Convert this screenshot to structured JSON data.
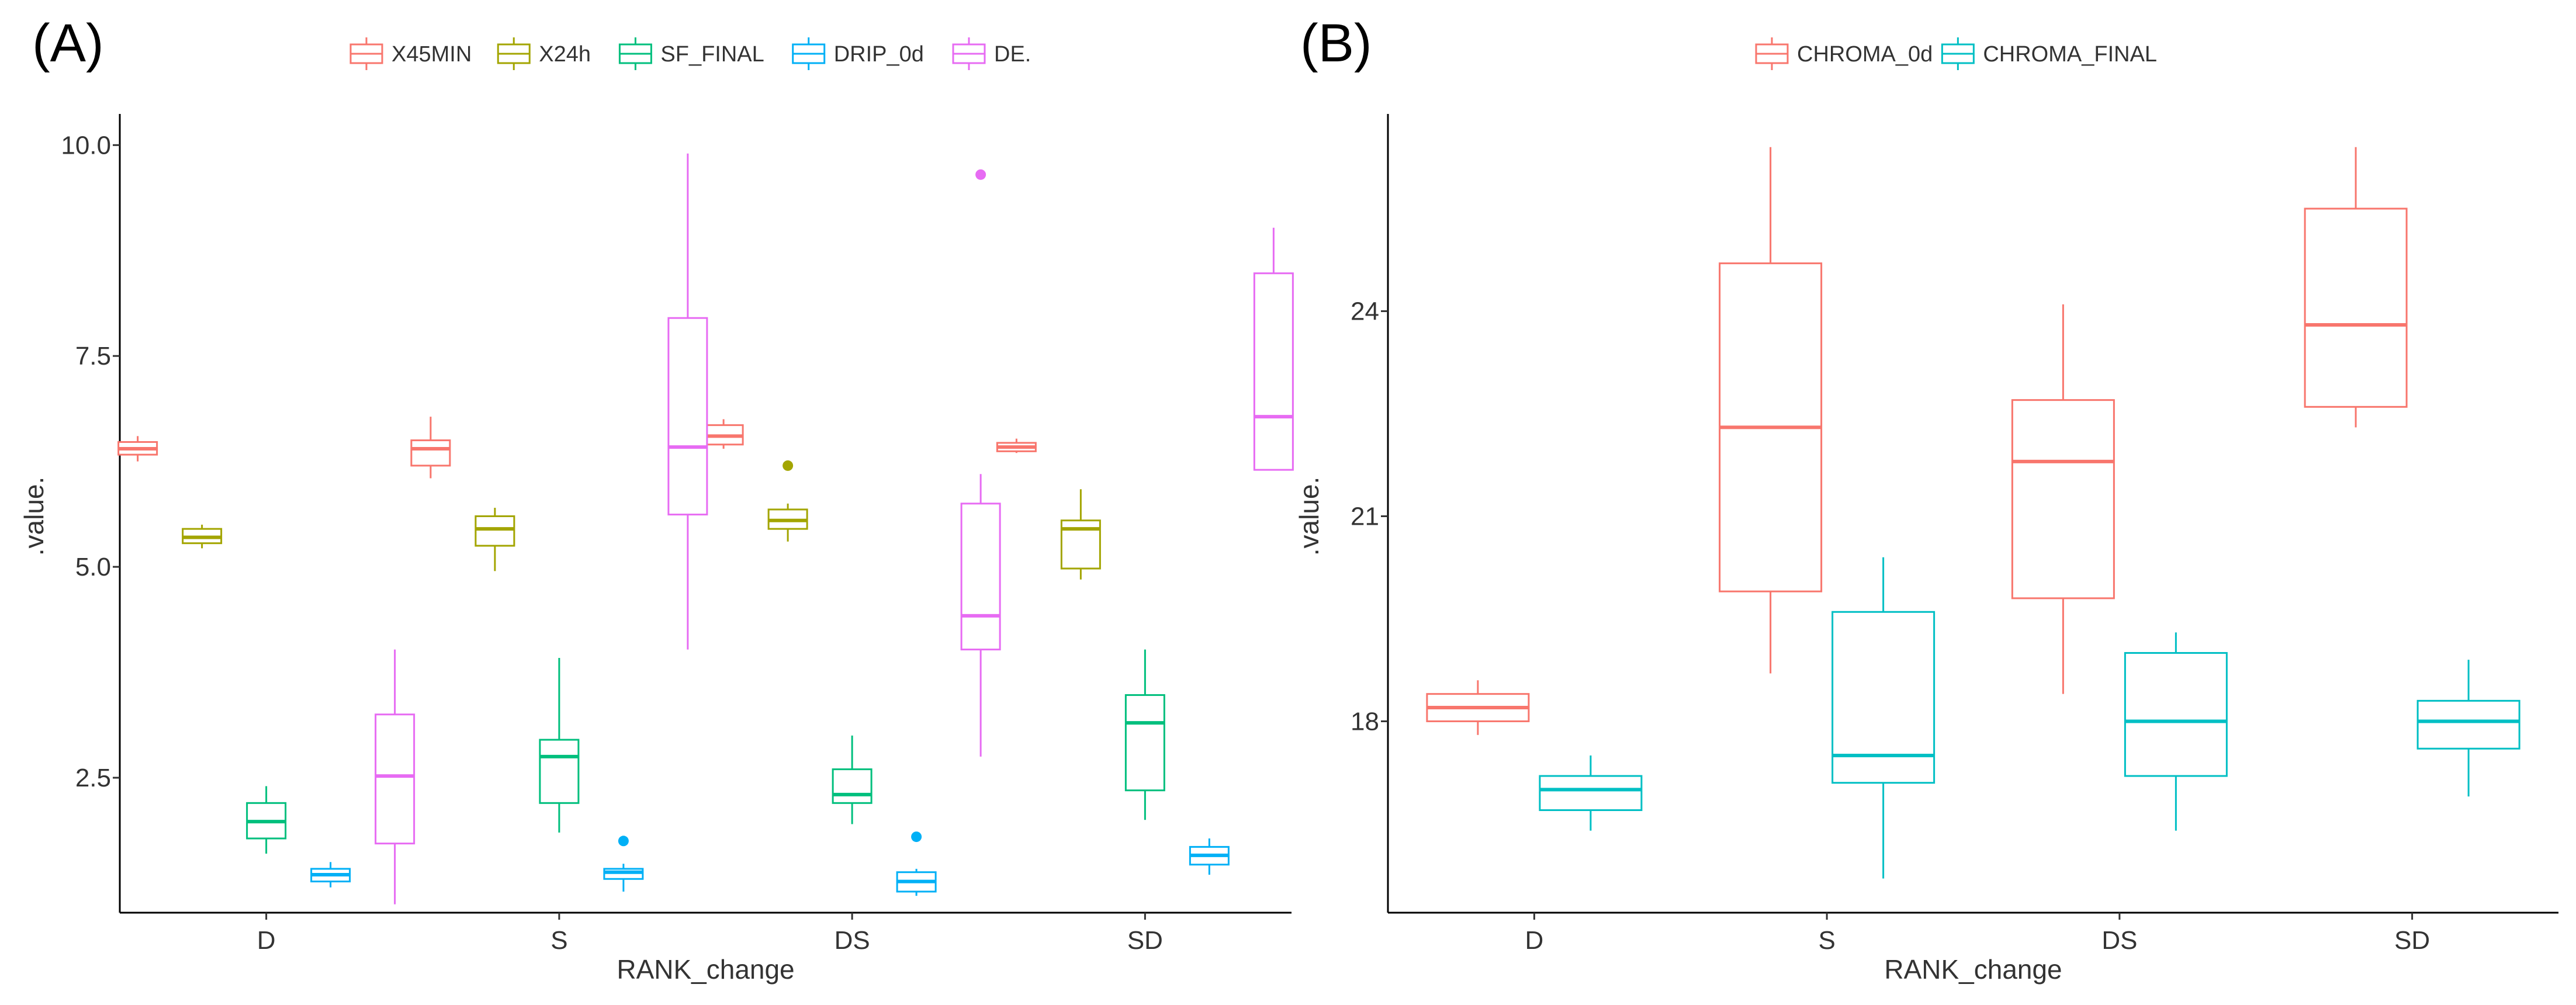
{
  "chart_data": [
    {
      "type": "boxplot",
      "panel_label": "(A)",
      "xlabel": "RANK_change",
      "ylabel": ".value.",
      "categories": [
        "D",
        "S",
        "DS",
        "SD"
      ],
      "ylim": [
        0.9,
        10.3
      ],
      "yticks": [
        2.5,
        5.0,
        7.5,
        10.0
      ],
      "ytick_labels": [
        "2.5",
        "5.0",
        "7.5",
        "10.0"
      ],
      "legend_position": "top",
      "series": [
        {
          "name": "X45MIN",
          "color": "#F8766D",
          "boxes": [
            {
              "category": "D",
              "low": 6.25,
              "q1": 6.33,
              "median": 6.4,
              "q3": 6.48,
              "high": 6.55,
              "outliers": []
            },
            {
              "category": "S",
              "low": 6.05,
              "q1": 6.2,
              "median": 6.4,
              "q3": 6.5,
              "high": 6.78,
              "outliers": []
            },
            {
              "category": "DS",
              "low": 6.4,
              "q1": 6.45,
              "median": 6.55,
              "q3": 6.68,
              "high": 6.75,
              "outliers": []
            },
            {
              "category": "SD",
              "low": 6.35,
              "q1": 6.37,
              "median": 6.42,
              "q3": 6.47,
              "high": 6.52,
              "outliers": []
            }
          ]
        },
        {
          "name": "X24h",
          "color": "#A3A500",
          "boxes": [
            {
              "category": "D",
              "low": 5.22,
              "q1": 5.28,
              "median": 5.35,
              "q3": 5.45,
              "high": 5.5,
              "outliers": []
            },
            {
              "category": "S",
              "low": 4.95,
              "q1": 5.25,
              "median": 5.45,
              "q3": 5.6,
              "high": 5.7,
              "outliers": []
            },
            {
              "category": "DS",
              "low": 5.3,
              "q1": 5.45,
              "median": 5.55,
              "q3": 5.68,
              "high": 5.75,
              "outliers": [
                6.2
              ]
            },
            {
              "category": "SD",
              "low": 4.85,
              "q1": 4.98,
              "median": 5.45,
              "q3": 5.55,
              "high": 5.92,
              "outliers": []
            }
          ]
        },
        {
          "name": "SF_FINAL",
          "color": "#00BF7D",
          "boxes": [
            {
              "category": "D",
              "low": 1.6,
              "q1": 1.78,
              "median": 1.98,
              "q3": 2.2,
              "high": 2.4,
              "outliers": []
            },
            {
              "category": "S",
              "low": 1.85,
              "q1": 2.2,
              "median": 2.75,
              "q3": 2.95,
              "high": 3.92,
              "outliers": []
            },
            {
              "category": "DS",
              "low": 1.95,
              "q1": 2.2,
              "median": 2.3,
              "q3": 2.6,
              "high": 3.0,
              "outliers": []
            },
            {
              "category": "SD",
              "low": 2.0,
              "q1": 2.35,
              "median": 3.15,
              "q3": 3.48,
              "high": 4.02,
              "outliers": []
            }
          ]
        },
        {
          "name": "DRIP_0d",
          "color": "#00B0F6",
          "boxes": [
            {
              "category": "D",
              "low": 1.2,
              "q1": 1.27,
              "median": 1.35,
              "q3": 1.42,
              "high": 1.5,
              "outliers": []
            },
            {
              "category": "S",
              "low": 1.15,
              "q1": 1.3,
              "median": 1.38,
              "q3": 1.42,
              "high": 1.48,
              "outliers": [
                1.75
              ]
            },
            {
              "category": "DS",
              "low": 1.1,
              "q1": 1.15,
              "median": 1.27,
              "q3": 1.38,
              "high": 1.42,
              "outliers": [
                1.8
              ]
            },
            {
              "category": "SD",
              "low": 1.35,
              "q1": 1.47,
              "median": 1.58,
              "q3": 1.68,
              "high": 1.78,
              "outliers": []
            }
          ]
        },
        {
          "name": "DE.",
          "color": "#E76BF3",
          "boxes": [
            {
              "category": "D",
              "low": 1.0,
              "q1": 1.72,
              "median": 2.52,
              "q3": 3.25,
              "high": 4.02,
              "outliers": []
            },
            {
              "category": "S",
              "low": 4.02,
              "q1": 5.62,
              "median": 6.42,
              "q3": 7.95,
              "high": 9.9,
              "outliers": []
            },
            {
              "category": "DS",
              "low": 2.75,
              "q1": 4.02,
              "median": 4.42,
              "q3": 5.75,
              "high": 6.1,
              "outliers": [
                9.65
              ]
            },
            {
              "category": "SD",
              "low": 6.15,
              "q1": 6.15,
              "median": 6.78,
              "q3": 8.48,
              "high": 9.02,
              "outliers": []
            }
          ]
        }
      ]
    },
    {
      "type": "boxplot",
      "panel_label": "(B)",
      "xlabel": "RANK_change",
      "ylabel": ".value.",
      "categories": [
        "D",
        "S",
        "DS",
        "SD"
      ],
      "ylim": [
        15.2,
        26.8
      ],
      "yticks": [
        18,
        21,
        24
      ],
      "ytick_labels": [
        "18",
        "21",
        "24"
      ],
      "legend_position": "top",
      "series": [
        {
          "name": "CHROMA_0d",
          "color": "#F8766D",
          "boxes": [
            {
              "category": "D",
              "low": 17.8,
              "q1": 18.0,
              "median": 18.2,
              "q3": 18.4,
              "high": 18.6,
              "outliers": []
            },
            {
              "category": "S",
              "low": 18.7,
              "q1": 19.9,
              "median": 22.3,
              "q3": 24.7,
              "high": 26.4,
              "outliers": []
            },
            {
              "category": "DS",
              "low": 18.4,
              "q1": 19.8,
              "median": 21.8,
              "q3": 22.7,
              "high": 24.1,
              "outliers": []
            },
            {
              "category": "SD",
              "low": 22.3,
              "q1": 22.6,
              "median": 23.8,
              "q3": 25.5,
              "high": 26.4,
              "outliers": []
            }
          ]
        },
        {
          "name": "CHROMA_FINAL",
          "color": "#00BFC4",
          "boxes": [
            {
              "category": "D",
              "low": 16.4,
              "q1": 16.7,
              "median": 17.0,
              "q3": 17.2,
              "high": 17.5,
              "outliers": []
            },
            {
              "category": "S",
              "low": 15.7,
              "q1": 17.1,
              "median": 17.5,
              "q3": 19.6,
              "high": 20.4,
              "outliers": []
            },
            {
              "category": "DS",
              "low": 16.4,
              "q1": 17.2,
              "median": 18.0,
              "q3": 19.0,
              "high": 19.3,
              "outliers": []
            },
            {
              "category": "SD",
              "low": 16.9,
              "q1": 17.6,
              "median": 18.0,
              "q3": 18.3,
              "high": 18.9,
              "outliers": []
            }
          ]
        }
      ]
    }
  ]
}
